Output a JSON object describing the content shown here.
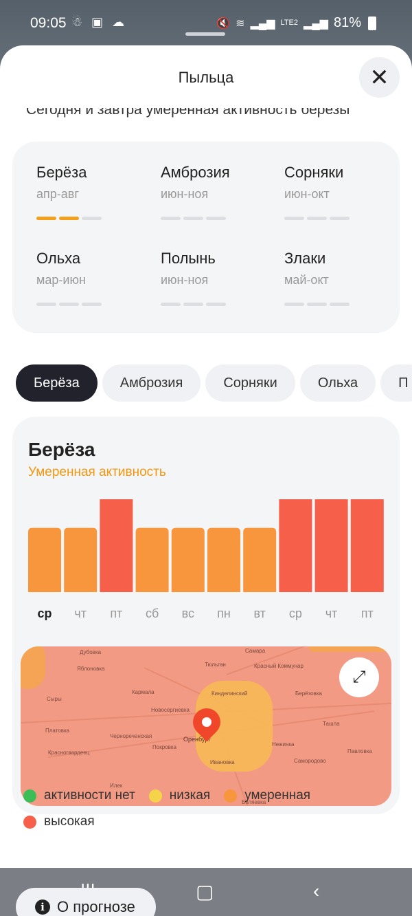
{
  "status_bar": {
    "time": "09:05",
    "battery": "81%",
    "network": "LTE2"
  },
  "sheet": {
    "title": "Пыльца",
    "summary": "Сегодня и завтра умеренная активность березы"
  },
  "allergens": [
    {
      "name": "Берёза",
      "range": "апр-авг",
      "level": 2
    },
    {
      "name": "Амброзия",
      "range": "июн-ноя",
      "level": 0
    },
    {
      "name": "Сорняки",
      "range": "июн-окт",
      "level": 0
    },
    {
      "name": "Ольха",
      "range": "мар-июн",
      "level": 0
    },
    {
      "name": "Полынь",
      "range": "июн-ноя",
      "level": 0
    },
    {
      "name": "Злаки",
      "range": "май-окт",
      "level": 0
    }
  ],
  "tabs": [
    {
      "label": "Берёза",
      "active": true
    },
    {
      "label": "Амброзия",
      "active": false
    },
    {
      "label": "Сорняки",
      "active": false
    },
    {
      "label": "Ольха",
      "active": false
    },
    {
      "label": "П",
      "active": false
    }
  ],
  "forecast": {
    "title": "Берёза",
    "status": "Умеренная активность"
  },
  "chart_data": {
    "type": "bar",
    "categories": [
      "ср",
      "чт",
      "пт",
      "сб",
      "вс",
      "пн",
      "вт",
      "ср",
      "чт",
      "пт"
    ],
    "values": [
      2,
      2,
      3,
      2,
      2,
      2,
      2,
      3,
      3,
      3
    ],
    "levels": [
      "умеренная",
      "умеренная",
      "высокая",
      "умеренная",
      "умеренная",
      "умеренная",
      "умеренная",
      "высокая",
      "высокая",
      "высокая"
    ],
    "ylim": [
      0,
      3
    ],
    "grid": false,
    "colors": {
      "умеренная": "#f7963c",
      "высокая": "#f6604a"
    }
  },
  "map": {
    "city": "Оренбург",
    "labels": [
      "Дубовка",
      "Самара",
      "Яблоновка",
      "Тюльган",
      "Красный Коммунар",
      "Сыры",
      "Кармала",
      "Берёзовка",
      "Новосергиевка",
      "Кинделинский",
      "Платовка",
      "Красногвардеец",
      "Чернореченская",
      "Ивановка",
      "Нежинка",
      "Самородово",
      "Покровка",
      "Ташла",
      "Илек",
      "Беляевка",
      "Павловка"
    ]
  },
  "legend": [
    {
      "label": "активности нет",
      "color": "#3dbd55"
    },
    {
      "label": "низкая",
      "color": "#f5d44a"
    },
    {
      "label": "умеренная",
      "color": "#f7963c"
    },
    {
      "label": "высокая",
      "color": "#f6604a"
    }
  ],
  "about_button": {
    "label": "О прогнозе"
  }
}
